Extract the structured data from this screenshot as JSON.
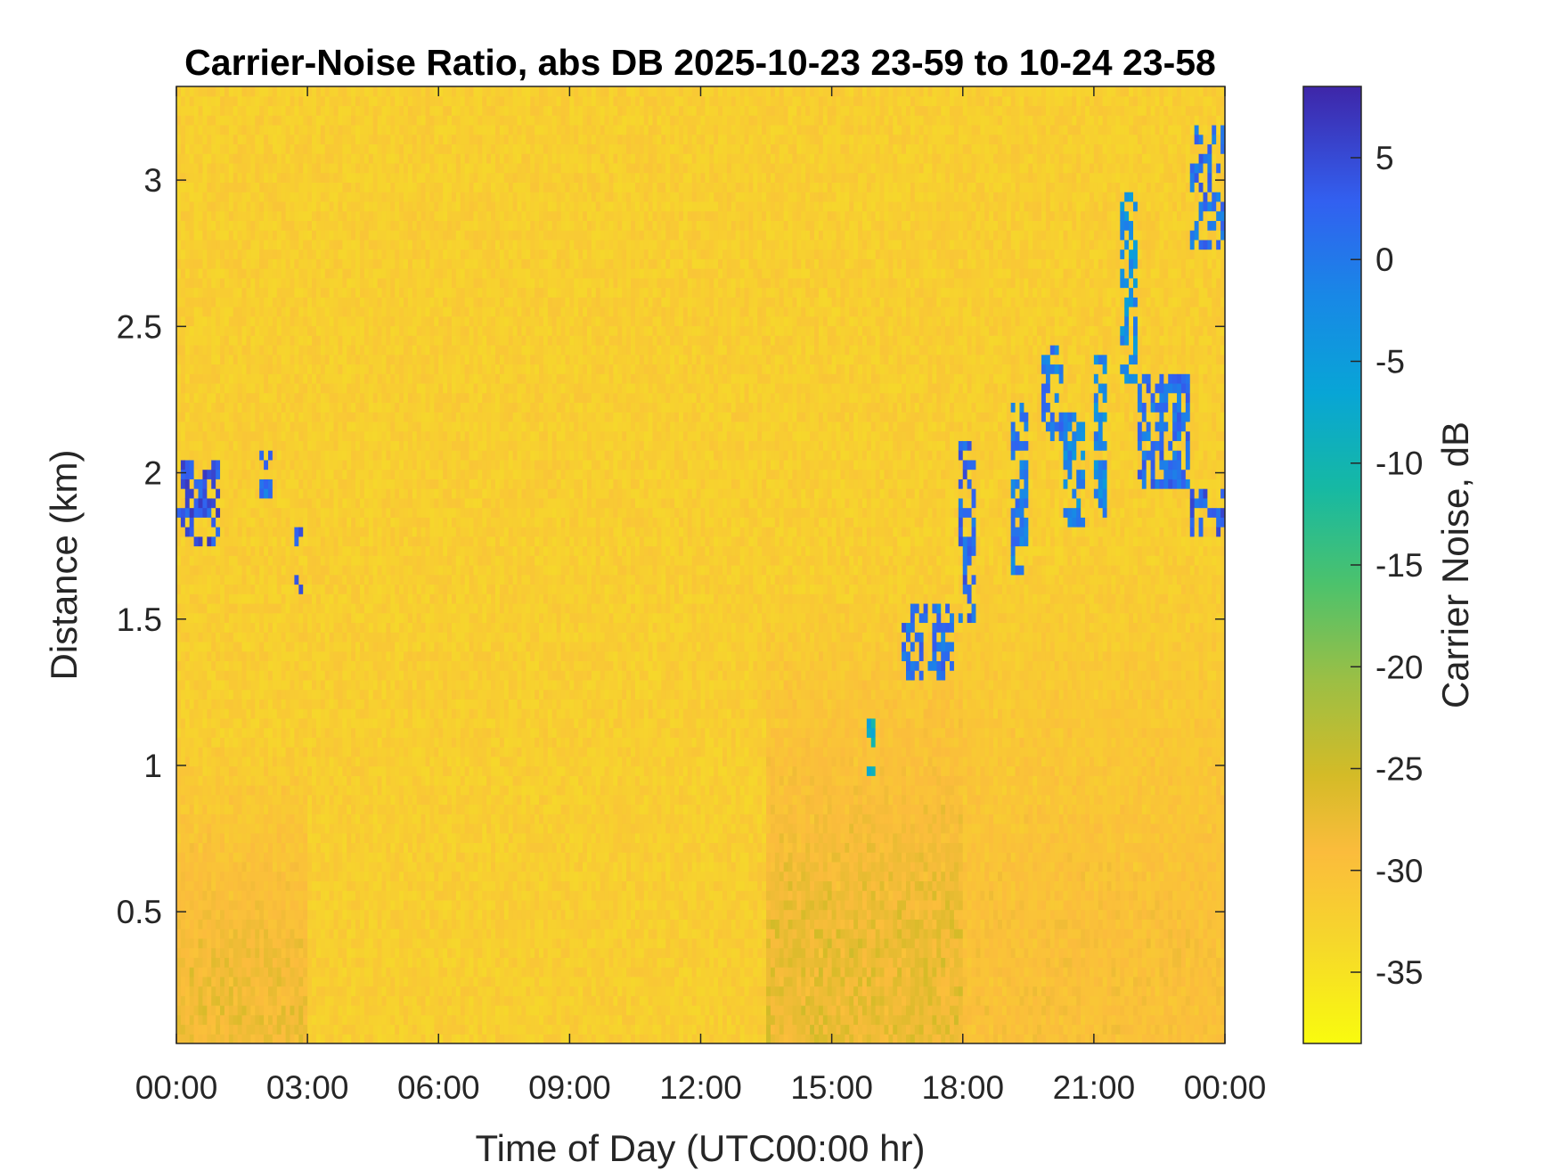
{
  "chart_data": {
    "type": "heatmap",
    "title": "Carrier-Noise Ratio, abs DB 2025-10-23 23-59 to 10-24 23-58",
    "xlabel": "Time of Day (UTC00:00 hr)",
    "ylabel": "Distance (km)",
    "colorbar_label": "Carrier Noise, dB",
    "xlim_hours": [
      0,
      24
    ],
    "ylim_km": [
      0.05,
      3.32
    ],
    "clim_db": [
      -38.5,
      8.5
    ],
    "colormap": "parula (reversed: yellow = low, dark blue = high)",
    "x_ticks": [
      {
        "value": 0,
        "label": "00:00"
      },
      {
        "value": 3,
        "label": "03:00"
      },
      {
        "value": 6,
        "label": "06:00"
      },
      {
        "value": 9,
        "label": "09:00"
      },
      {
        "value": 12,
        "label": "12:00"
      },
      {
        "value": 15,
        "label": "15:00"
      },
      {
        "value": 18,
        "label": "18:00"
      },
      {
        "value": 21,
        "label": "21:00"
      },
      {
        "value": 24,
        "label": "00:00"
      }
    ],
    "y_ticks": [
      {
        "value": 0.5,
        "label": "0.5"
      },
      {
        "value": 1.0,
        "label": "1"
      },
      {
        "value": 1.5,
        "label": "1.5"
      },
      {
        "value": 2.0,
        "label": "2"
      },
      {
        "value": 2.5,
        "label": "2.5"
      },
      {
        "value": 3.0,
        "label": "3"
      }
    ],
    "colorbar_ticks": [
      {
        "value": 5,
        "label": "5"
      },
      {
        "value": 0,
        "label": "0"
      },
      {
        "value": -5,
        "label": "-5"
      },
      {
        "value": -10,
        "label": "-10"
      },
      {
        "value": -15,
        "label": "-15"
      },
      {
        "value": -20,
        "label": "-20"
      },
      {
        "value": -25,
        "label": "-25"
      },
      {
        "value": -30,
        "label": "-30"
      },
      {
        "value": -35,
        "label": "-35"
      }
    ],
    "background_db": -32,
    "features": [
      {
        "kind": "cloud",
        "t": [
          0.0,
          1.0
        ],
        "z": [
          1.76,
          2.03
        ],
        "db": 4
      },
      {
        "kind": "cloud",
        "t": [
          1.95,
          2.2
        ],
        "z": [
          1.9,
          2.07
        ],
        "db": 1
      },
      {
        "kind": "cloud",
        "t": [
          2.75,
          2.9
        ],
        "z": [
          1.6,
          1.83
        ],
        "db": 2
      },
      {
        "kind": "cloud",
        "t": [
          15.85,
          16.0
        ],
        "z": [
          0.95,
          1.2
        ],
        "db": -8
      },
      {
        "kind": "cloud",
        "t": [
          16.6,
          17.8
        ],
        "z": [
          1.3,
          1.55
        ],
        "db": 1
      },
      {
        "kind": "cloud",
        "t": [
          17.9,
          18.3
        ],
        "z": [
          1.5,
          2.1
        ],
        "db": 2
      },
      {
        "kind": "cloud",
        "t": [
          19.1,
          19.5
        ],
        "z": [
          1.65,
          2.25
        ],
        "db": 0
      },
      {
        "kind": "cloud",
        "t": [
          19.8,
          20.3
        ],
        "z": [
          2.1,
          2.45
        ],
        "db": 0
      },
      {
        "kind": "cloud",
        "t": [
          20.3,
          20.8
        ],
        "z": [
          1.8,
          2.2
        ],
        "db": -2
      },
      {
        "kind": "cloud",
        "t": [
          21.0,
          21.3
        ],
        "z": [
          1.85,
          2.45
        ],
        "db": -2
      },
      {
        "kind": "cloud",
        "t": [
          21.6,
          22.0
        ],
        "z": [
          2.3,
          2.95
        ],
        "db": -3
      },
      {
        "kind": "cloud",
        "t": [
          22.0,
          23.2
        ],
        "z": [
          1.95,
          2.35
        ],
        "db": 1
      },
      {
        "kind": "cloud",
        "t": [
          23.2,
          24.0
        ],
        "z": [
          1.78,
          1.95
        ],
        "db": 3
      },
      {
        "kind": "cloud",
        "t": [
          23.2,
          24.0
        ],
        "z": [
          2.75,
          3.18
        ],
        "db": 1
      },
      {
        "kind": "boundary_layer",
        "t": [
          0.0,
          3.0
        ],
        "z": [
          0.05,
          1.1
        ],
        "db": -27
      },
      {
        "kind": "boundary_layer",
        "t": [
          13.5,
          18.0
        ],
        "z": [
          0.05,
          1.6
        ],
        "db": -26
      },
      {
        "kind": "boundary_layer",
        "t": [
          18.0,
          24.0
        ],
        "z": [
          0.05,
          1.75
        ],
        "db": -29
      }
    ]
  }
}
